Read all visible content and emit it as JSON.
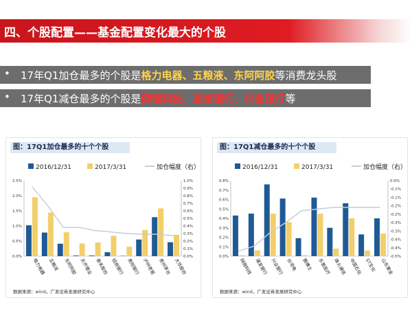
{
  "header": {
    "title": "四、个股配置——基金配置变化最大的个股"
  },
  "bullets": [
    {
      "text_before": "17年Q1加仓最多的个股是",
      "highlight": "格力电器、五粮液、东阿阿胶",
      "text_after": "等消费龙头股"
    },
    {
      "text_before": "17年Q1减仓最多的个股是",
      "highlight": "网宿科技、浦发银行、兴业银行",
      "text_after": "等"
    }
  ],
  "colors": {
    "series_2016": "#1f5a96",
    "series_2017": "#f2cf6a",
    "line": "#c7ccd6",
    "header_red": "#d4171e",
    "bullet_bg": "#6d6d6d"
  },
  "chart_data": [
    {
      "type": "bar",
      "title": "图：17Q1加仓最多的十个个股",
      "legend": [
        "2016/12/31",
        "2017/3/31",
        "加仓幅度（右）"
      ],
      "legend_position": "top",
      "categories": [
        "格力电器",
        "五粮液",
        "东阿阿胶",
        "天齐锂业",
        "泰禾股份",
        "招商银行",
        "贵阳银行",
        "泸州老窖",
        "贵州茅台",
        "大华股份"
      ],
      "series": [
        {
          "name": "2016/12/31",
          "axis": "left",
          "values": [
            1.02,
            0.78,
            0.41,
            0.02,
            0.02,
            0.13,
            0.01,
            0.55,
            1.29,
            0.46
          ]
        },
        {
          "name": "2017/3/31",
          "axis": "left",
          "values": [
            1.95,
            1.44,
            0.79,
            0.42,
            0.45,
            0.67,
            0.31,
            0.87,
            1.58,
            0.71
          ]
        },
        {
          "name": "加仓幅度（右）",
          "axis": "right",
          "type": "line",
          "values": [
            0.92,
            0.67,
            0.38,
            0.38,
            0.34,
            0.32,
            0.3,
            0.29,
            0.29,
            0.27
          ]
        }
      ],
      "ylim_left": [
        0,
        2.5
      ],
      "yticks_left": [
        "0.0%",
        "0.5%",
        "1.0%",
        "1.5%",
        "2.0%",
        "2.5%"
      ],
      "ylim_right": [
        0,
        1.0
      ],
      "yticks_right": [
        "0.0%",
        "0.1%",
        "0.2%",
        "0.3%",
        "0.4%",
        "0.5%",
        "0.6%",
        "0.7%",
        "0.8%",
        "0.9%",
        "1.0%"
      ],
      "source": "数据来源：wind，广发证券发展研究中心"
    },
    {
      "type": "bar",
      "title": "图：17Q1减仓最多的十个个股",
      "legend": [
        "2016/12/31",
        "2017/3/31",
        "加仓幅度（右）"
      ],
      "legend_position": "top",
      "categories": [
        "网宿科技",
        "浦发银行",
        "兴业银行",
        "台湾电",
        "鹏博士",
        "乐普医疗",
        "烽火通信",
        "中国石化",
        "ST生化",
        "山东黄金"
      ],
      "series": [
        {
          "name": "2016/12/31",
          "axis": "left",
          "values": [
            0.43,
            0.45,
            0.76,
            0.61,
            0.19,
            0.62,
            0.3,
            0.56,
            0.23,
            0.4
          ]
        },
        {
          "name": "2017/3/31",
          "axis": "left",
          "values": [
            0.01,
            0.06,
            0.45,
            0.36,
            0.01,
            0.45,
            0.08,
            0.4,
            0.06,
            0.24
          ]
        },
        {
          "name": "加仓幅度（右）",
          "axis": "right",
          "type": "line",
          "values": [
            -0.42,
            -0.39,
            -0.31,
            -0.25,
            -0.18,
            -0.17,
            -0.16,
            -0.16,
            -0.16,
            -0.16
          ]
        }
      ],
      "ylim_left": [
        0,
        0.8
      ],
      "yticks_left": [
        "0.0%",
        "0.1%",
        "0.2%",
        "0.3%",
        "0.4%",
        "0.5%",
        "0.6%",
        "0.7%",
        "0.8%"
      ],
      "ylim_right": [
        -0.45,
        0.0
      ],
      "yticks_right": [
        "0.0%",
        "-0.1%",
        "-0.1%",
        "-0.2%",
        "-0.2%",
        "-0.3%",
        "-0.3%",
        "-0.4%",
        "-0.4%",
        "-0.5%"
      ],
      "source": "数据来源：wind，广发证券发展研究中心"
    }
  ]
}
